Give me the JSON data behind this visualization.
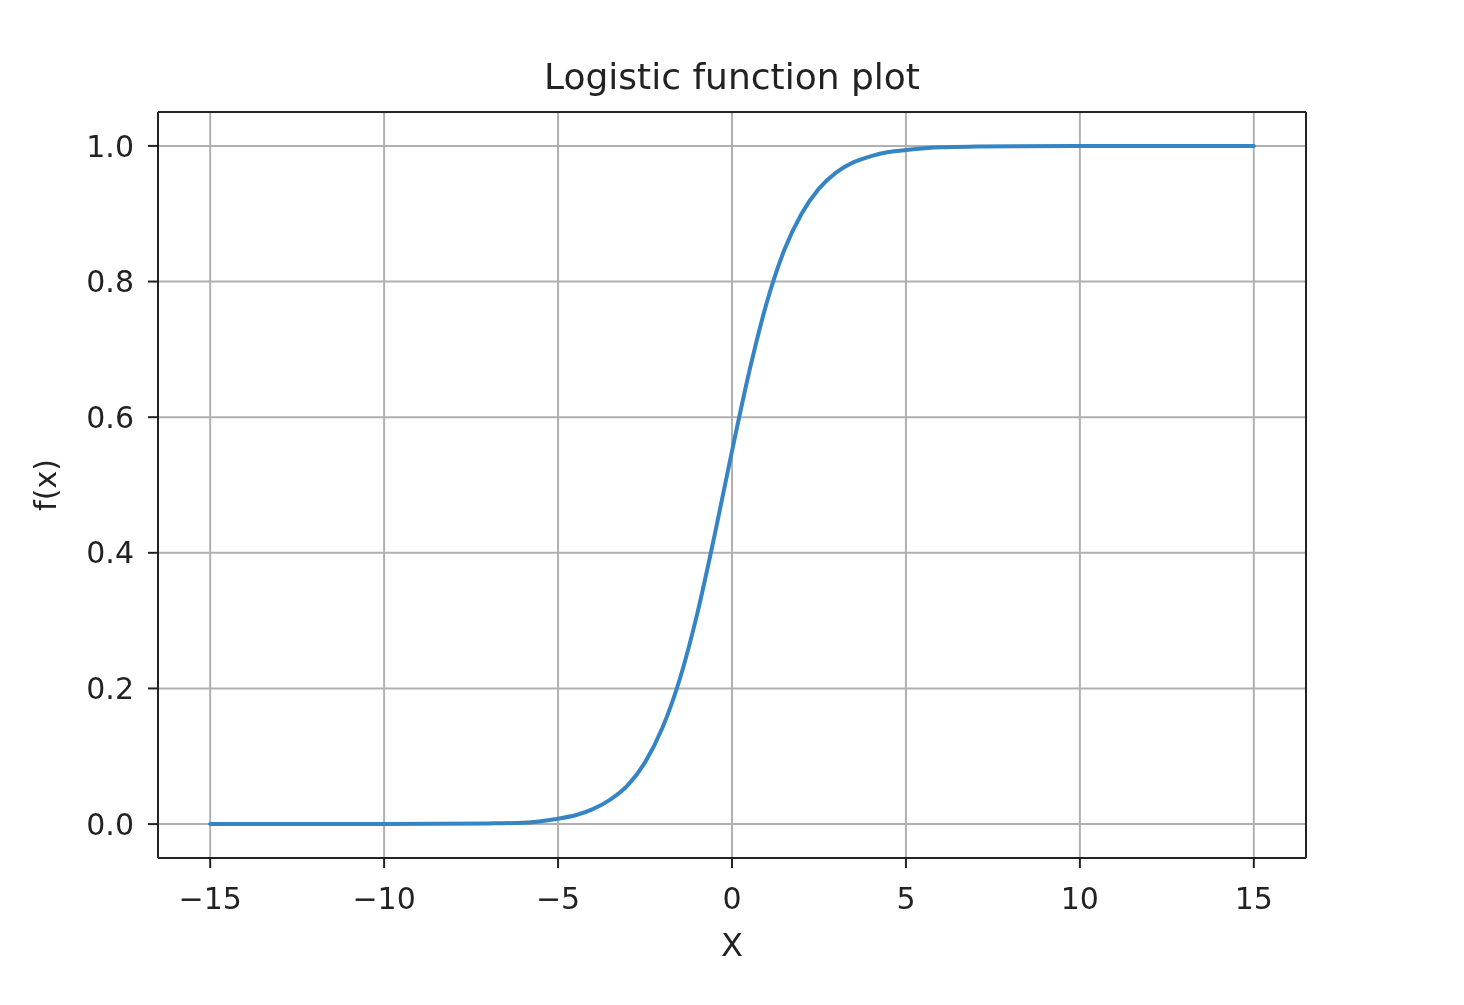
{
  "chart_data": {
    "type": "line",
    "title": "Logistic function plot",
    "xlabel": "X",
    "ylabel": "f(x)",
    "x": [
      -15,
      -10,
      -7,
      -6,
      -5,
      -4.5,
      -4,
      -3.5,
      -3,
      -2.5,
      -2,
      -1.5,
      -1,
      -0.5,
      0,
      0.5,
      1,
      1.5,
      2,
      2.5,
      3,
      3.5,
      4,
      4.5,
      5,
      6,
      7,
      10,
      15
    ],
    "values": [
      0,
      0,
      0.001,
      0.002,
      0.008,
      0.013,
      0.022,
      0.036,
      0.057,
      0.091,
      0.142,
      0.214,
      0.31,
      0.426,
      0.55,
      0.668,
      0.769,
      0.846,
      0.9,
      0.937,
      0.961,
      0.976,
      0.985,
      0.991,
      0.994,
      0.998,
      0.999,
      1,
      1
    ],
    "color": "#3584c4",
    "xlim": [
      -16.5,
      16.5
    ],
    "ylim": [
      -0.05,
      1.05
    ],
    "xticks": [
      {
        "value": -15,
        "label": "−15"
      },
      {
        "value": -10,
        "label": "−10"
      },
      {
        "value": -5,
        "label": "−5"
      },
      0,
      5,
      10,
      15
    ],
    "yticks": [
      {
        "value": 0,
        "label": "0.0"
      },
      {
        "value": 0.2,
        "label": "0.2"
      },
      {
        "value": 0.4,
        "label": "0.4"
      },
      {
        "value": 0.6,
        "label": "0.6"
      },
      {
        "value": 0.8,
        "label": "0.8"
      },
      {
        "value": 1,
        "label": "1.0"
      }
    ],
    "grid": true,
    "line_style": "solid"
  }
}
